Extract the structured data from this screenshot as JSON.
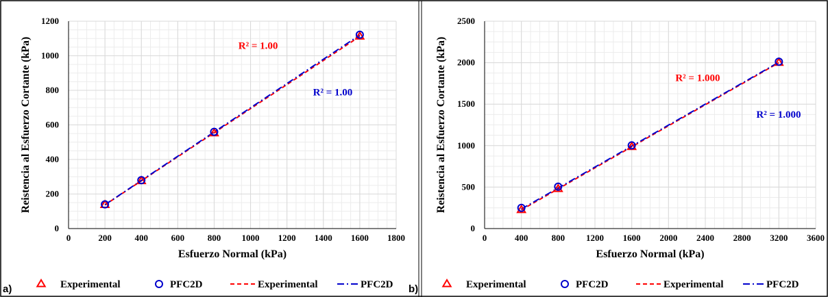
{
  "colors": {
    "experimental": "#ff0000",
    "pfc2d": "#0000cc",
    "grid": "#d9d9d9"
  },
  "chart_data": [
    {
      "type": "scatter",
      "panel_label": "a)",
      "xlabel": "Esfuerzo Normal (kPa)",
      "ylabel": "Reistencia al Esfuerzo Cortante  (kPa)",
      "xlim": [
        0,
        1800
      ],
      "ylim": [
        0,
        1200
      ],
      "xticks": [
        0,
        200,
        400,
        600,
        800,
        1000,
        1200,
        1400,
        1600,
        1800
      ],
      "yticks": [
        0,
        200,
        400,
        600,
        800,
        1000,
        1200
      ],
      "grid": true,
      "legend_position": "bottom",
      "series": [
        {
          "name": "Experimental",
          "kind": "markers",
          "marker": "triangle",
          "color": "#ff0000",
          "x": [
            200,
            400,
            800,
            1600
          ],
          "y": [
            137,
            275,
            552,
            1112
          ]
        },
        {
          "name": "PFC2D",
          "kind": "markers",
          "marker": "circle",
          "color": "#0000cc",
          "x": [
            200,
            400,
            800,
            1600
          ],
          "y": [
            140,
            280,
            560,
            1122
          ]
        },
        {
          "name": "Experimental",
          "kind": "trend",
          "dash": "dashed",
          "color": "#ff0000",
          "x": [
            200,
            1600
          ],
          "y": [
            137,
            1112
          ]
        },
        {
          "name": "PFC2D",
          "kind": "trend",
          "dash": "dashdot",
          "color": "#0000cc",
          "x": [
            200,
            1600
          ],
          "y": [
            138,
            1120
          ]
        }
      ],
      "annotations": [
        {
          "text": "R² = 1.00",
          "color": "#ff0000",
          "at": [
            1150,
            1040
          ]
        },
        {
          "text": "R² = 1.00",
          "color": "#0000cc",
          "at": [
            1560,
            770
          ]
        }
      ]
    },
    {
      "type": "scatter",
      "panel_label": "b)",
      "xlabel": "Esfuerzo Normal (kPa)",
      "ylabel": "Reistencia al Esfuerzo Cortante  (kPa)",
      "xlim": [
        0,
        3600
      ],
      "ylim": [
        0,
        2500
      ],
      "xticks": [
        0,
        400,
        800,
        1200,
        1600,
        2000,
        2400,
        2800,
        3200,
        3600
      ],
      "yticks": [
        0,
        500,
        1000,
        1500,
        2000,
        2500
      ],
      "grid": true,
      "legend_position": "bottom",
      "series": [
        {
          "name": "Experimental",
          "kind": "markers",
          "marker": "triangle",
          "color": "#ff0000",
          "x": [
            400,
            800,
            1600,
            3200
          ],
          "y": [
            225,
            478,
            985,
            2000
          ]
        },
        {
          "name": "PFC2D",
          "kind": "markers",
          "marker": "circle",
          "color": "#0000cc",
          "x": [
            400,
            800,
            1600,
            3200
          ],
          "y": [
            250,
            505,
            1003,
            2012
          ]
        },
        {
          "name": "Experimental",
          "kind": "trend",
          "dash": "dashed",
          "color": "#ff0000",
          "x": [
            400,
            3200
          ],
          "y": [
            225,
            2000
          ]
        },
        {
          "name": "PFC2D",
          "kind": "trend",
          "dash": "dashdot",
          "color": "#0000cc",
          "x": [
            400,
            3200
          ],
          "y": [
            236,
            2006
          ]
        }
      ],
      "annotations": [
        {
          "text": "R² = 1.000",
          "color": "#ff0000",
          "at": [
            2560,
            1780
          ]
        },
        {
          "text": "R² = 1.000",
          "color": "#0000cc",
          "at": [
            3440,
            1335
          ]
        }
      ]
    }
  ],
  "legend": [
    {
      "label": "Experimental",
      "type": "marker",
      "shape": "triangle",
      "color": "#ff0000"
    },
    {
      "label": "PFC2D",
      "type": "marker",
      "shape": "circle",
      "color": "#0000cc"
    },
    {
      "label": "Experimental",
      "type": "line",
      "dash": "dashed",
      "color": "#ff0000"
    },
    {
      "label": "PFC2D",
      "type": "line",
      "dash": "dashdot",
      "color": "#0000cc"
    }
  ]
}
